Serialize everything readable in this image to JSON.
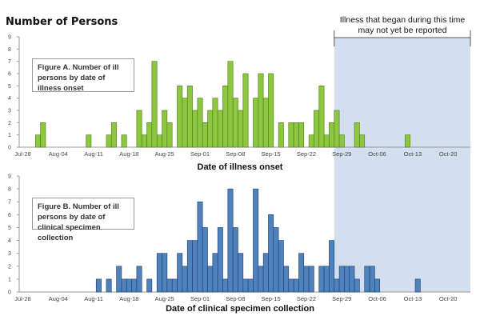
{
  "y_title": "Number of Persons",
  "note": "Illness that began during this time may not yet be reported",
  "colors": {
    "figure_a": "#8dc63f",
    "figure_b": "#4f81bd",
    "shade": "#d3dfee"
  },
  "chart_data": [
    {
      "type": "bar",
      "caption": "Figure A. Number of ill persons by date of illness onset",
      "xlabel": "Date of illness onset",
      "ylim": [
        0,
        9
      ],
      "yticks": [
        0,
        1,
        2,
        3,
        4,
        5,
        6,
        7,
        8,
        9
      ],
      "xticks": [
        "Jul-28",
        "Aug-04",
        "Aug-11",
        "Aug-18",
        "Aug-25",
        "Sep-01",
        "Sep-08",
        "Sep-15",
        "Sep-22",
        "Sep-29",
        "Oct-06",
        "Oct-13",
        "Oct-20"
      ],
      "shaded_from": "Sep-28",
      "dates": [
        "Jul-31",
        "Aug-01",
        "Aug-10",
        "Aug-14",
        "Aug-15",
        "Aug-17",
        "Aug-20",
        "Aug-21",
        "Aug-22",
        "Aug-23",
        "Aug-24",
        "Aug-25",
        "Aug-26",
        "Aug-28",
        "Aug-29",
        "Aug-30",
        "Aug-31",
        "Sep-01",
        "Sep-02",
        "Sep-03",
        "Sep-04",
        "Sep-05",
        "Sep-06",
        "Sep-07",
        "Sep-08",
        "Sep-09",
        "Sep-10",
        "Sep-12",
        "Sep-13",
        "Sep-14",
        "Sep-15",
        "Sep-17",
        "Sep-19",
        "Sep-20",
        "Sep-21",
        "Sep-23",
        "Sep-24",
        "Sep-25",
        "Sep-26",
        "Sep-27",
        "Sep-28",
        "Sep-29",
        "Oct-02",
        "Oct-03",
        "Oct-12"
      ],
      "values": [
        1,
        2,
        1,
        1,
        2,
        1,
        3,
        1,
        2,
        7,
        1,
        3,
        2,
        5,
        4,
        5,
        3,
        4,
        2,
        3,
        4,
        3,
        5,
        7,
        4,
        3,
        6,
        4,
        6,
        4,
        6,
        2,
        2,
        2,
        2,
        1,
        3,
        5,
        1,
        2,
        3,
        1,
        2,
        1,
        1
      ]
    },
    {
      "type": "bar",
      "caption": "Figure B. Number of ill persons by date of clinical specimen collection",
      "xlabel": "Date of clinical specimen collection",
      "ylim": [
        0,
        9
      ],
      "yticks": [
        0,
        1,
        2,
        3,
        4,
        5,
        6,
        7,
        8,
        9
      ],
      "xticks": [
        "Jul-28",
        "Aug-04",
        "Aug-11",
        "Aug-18",
        "Aug-25",
        "Sep-01",
        "Sep-08",
        "Sep-15",
        "Sep-22",
        "Sep-29",
        "Oct-06",
        "Oct-13",
        "Oct-20"
      ],
      "shaded_from": "Sep-28",
      "dates": [
        "Aug-12",
        "Aug-14",
        "Aug-16",
        "Aug-17",
        "Aug-18",
        "Aug-19",
        "Aug-20",
        "Aug-22",
        "Aug-24",
        "Aug-25",
        "Aug-26",
        "Aug-27",
        "Aug-28",
        "Aug-29",
        "Aug-30",
        "Aug-31",
        "Sep-01",
        "Sep-02",
        "Sep-03",
        "Sep-04",
        "Sep-05",
        "Sep-06",
        "Sep-07",
        "Sep-08",
        "Sep-09",
        "Sep-10",
        "Sep-11",
        "Sep-12",
        "Sep-13",
        "Sep-14",
        "Sep-15",
        "Sep-16",
        "Sep-17",
        "Sep-18",
        "Sep-19",
        "Sep-20",
        "Sep-21",
        "Sep-22",
        "Sep-23",
        "Sep-25",
        "Sep-26",
        "Sep-27",
        "Sep-28",
        "Sep-29",
        "Sep-30",
        "Oct-01",
        "Oct-02",
        "Oct-04",
        "Oct-05",
        "Oct-06",
        "Oct-14"
      ],
      "values": [
        1,
        1,
        2,
        1,
        1,
        1,
        2,
        1,
        3,
        3,
        1,
        1,
        3,
        2,
        4,
        4,
        7,
        5,
        2,
        3,
        5,
        1,
        8,
        5,
        3,
        1,
        1,
        8,
        2,
        3,
        6,
        5,
        4,
        2,
        1,
        1,
        3,
        2,
        2,
        2,
        2,
        4,
        1,
        2,
        2,
        2,
        1,
        2,
        2,
        1,
        1
      ]
    }
  ]
}
